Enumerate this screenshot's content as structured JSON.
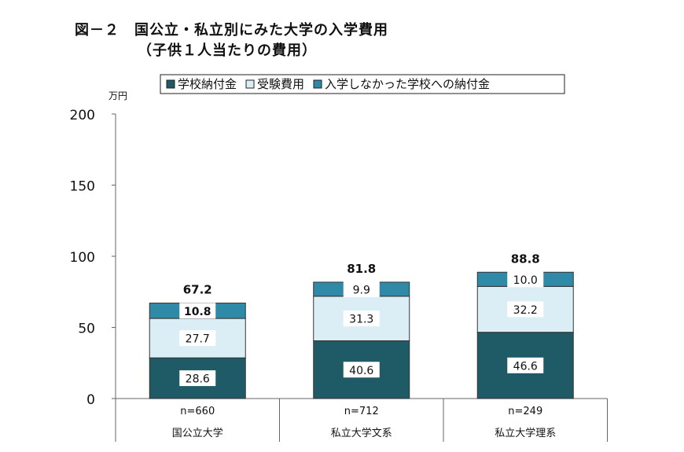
{
  "figure": {
    "title": "図－２　国公立・私立別にみた大学の入学費用",
    "subtitle": "（子供１人当たりの費用）"
  },
  "chart_data": {
    "type": "bar",
    "stacked": true,
    "yunit": "万円",
    "ylim": [
      0,
      200
    ],
    "yticks": [
      0,
      50,
      100,
      150,
      200
    ],
    "grid": false,
    "legend_position": "top",
    "categories": [
      "国公立大学",
      "私立大学文系",
      "私立大学理系"
    ],
    "sample_sizes": [
      "n=660",
      "n=712",
      "n=249"
    ],
    "series": [
      {
        "name": "学校納付金",
        "values": [
          28.6,
          40.6,
          46.6
        ],
        "labels": [
          "28.6",
          "40.6",
          "46.6"
        ],
        "color": "#1f5b66"
      },
      {
        "name": "受験費用",
        "values": [
          27.7,
          31.3,
          32.2
        ],
        "labels": [
          "27.7",
          "31.3",
          "32.2"
        ],
        "color": "#dceef5"
      },
      {
        "name": "入学しなかった学校への納付金",
        "values": [
          10.8,
          9.9,
          10.0
        ],
        "labels": [
          "10.8",
          "9.9",
          "10.0"
        ],
        "color": "#2e8aa6"
      }
    ],
    "totals": [
      67.2,
      81.8,
      88.8
    ],
    "total_labels": [
      "67.2",
      "81.8",
      "88.8"
    ]
  }
}
